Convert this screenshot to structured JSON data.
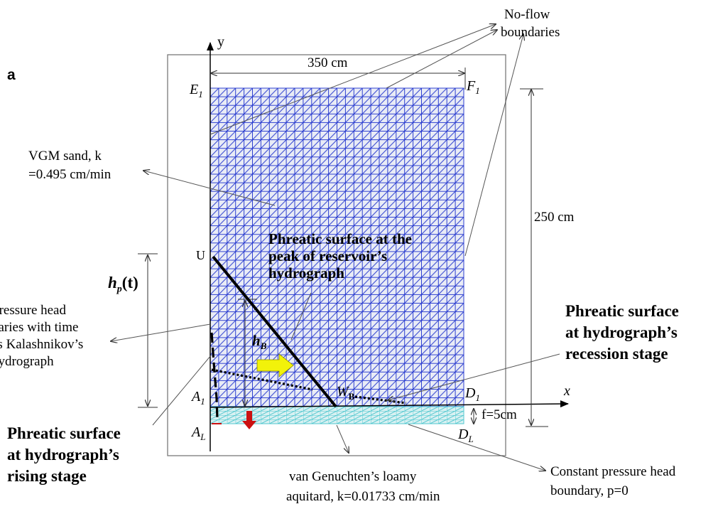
{
  "panel_label": "a",
  "axes": {
    "y": "y",
    "x": "x"
  },
  "dimensions": {
    "width": "350 cm",
    "height": "250 cm",
    "aquitard_thickness": "f=5cm"
  },
  "corners": {
    "E1": {
      "main": "E",
      "sub": "1"
    },
    "F1": {
      "main": "F",
      "sub": "1"
    },
    "U": "U",
    "A1": {
      "main": "A",
      "sub": "1"
    },
    "AL": {
      "main": "A",
      "sub": "L"
    },
    "D1": {
      "main": "D",
      "sub": "1"
    },
    "DL": {
      "main": "D",
      "sub": "L"
    },
    "WB": {
      "main": "W",
      "sub": "B"
    }
  },
  "labels": {
    "no_flow": [
      "No-flow",
      "boundaries"
    ],
    "vgm_sand": [
      "VGM sand, k",
      "=0.495 cm/min"
    ],
    "hp": {
      "main": "h",
      "sub": "p",
      "tail": "(t)"
    },
    "hb": {
      "main": "h",
      "sub": "B"
    },
    "pressure_head": [
      "Pressure head",
      "varies with time",
      "as Kalashnikov’s",
      "hydrograph"
    ],
    "phreatic_peak": [
      "Phreatic surface at the",
      "peak of reservoir’s",
      "hydrograph"
    ],
    "phreatic_recession": [
      "Phreatic surface",
      "at hydrograph’s",
      "recession stage"
    ],
    "phreatic_rising": [
      "Phreatic surface",
      "at hydrograph’s",
      "rising stage"
    ],
    "aquitard": [
      "van Genuchten’s loamy",
      "aquitard, k=0.01733 cm/min"
    ],
    "constant_head": [
      "Constant pressure head",
      "boundary, p=0"
    ]
  },
  "colors": {
    "mesh": "#2d3fd0",
    "aquitard_mesh": "#4fc7cf",
    "arrow_yellow": "#f2f20a",
    "arrow_red": "#cc1111",
    "line": "#000000"
  }
}
